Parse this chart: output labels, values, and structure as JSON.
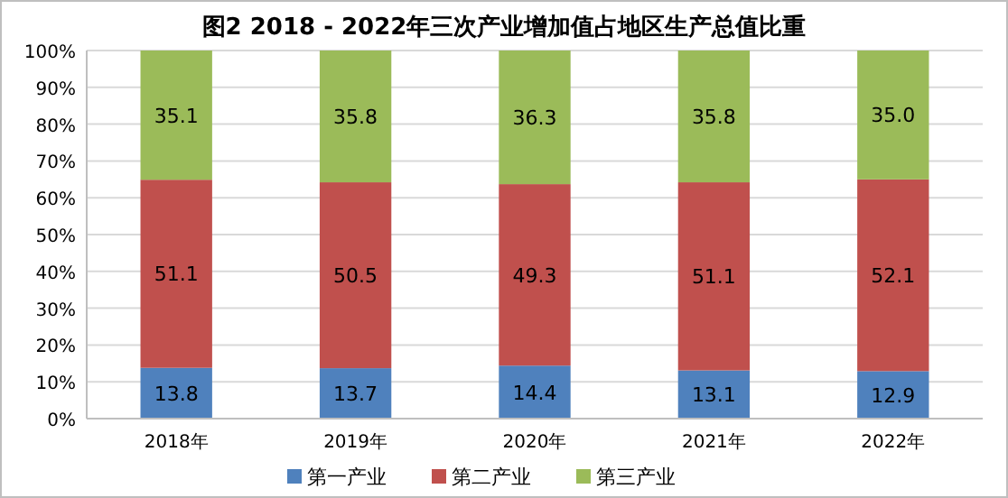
{
  "chart_data": {
    "type": "bar",
    "title": "图2 2018 - 2022年三次产业增加值占地区生产总值比重",
    "categories": [
      "2018年",
      "2019年",
      "2020年",
      "2021年",
      "2022年"
    ],
    "stacked": true,
    "series": [
      {
        "name": "第一产业",
        "color": "#4f81bd",
        "values": [
          13.8,
          13.7,
          14.4,
          13.1,
          12.9
        ]
      },
      {
        "name": "第二产业",
        "color": "#c0504d",
        "values": [
          51.1,
          50.5,
          49.3,
          51.1,
          52.1
        ]
      },
      {
        "name": "第三产业",
        "color": "#9bbb59",
        "values": [
          35.1,
          35.8,
          36.3,
          35.8,
          35.0
        ]
      }
    ],
    "value_labels": [
      [
        "13.8",
        "13.7",
        "14.4",
        "13.1",
        "12.9"
      ],
      [
        "51.1",
        "50.5",
        "49.3",
        "51.1",
        "52.1"
      ],
      [
        "35.1",
        "35.8",
        "36.3",
        "35.8",
        "35.0"
      ]
    ],
    "ylim": [
      0,
      100
    ],
    "yticks": [
      {
        "value": 0,
        "label": "0%"
      },
      {
        "value": 10,
        "label": "10%"
      },
      {
        "value": 20,
        "label": "20%"
      },
      {
        "value": 30,
        "label": "30%"
      },
      {
        "value": 40,
        "label": "40%"
      },
      {
        "value": 50,
        "label": "50%"
      },
      {
        "value": 60,
        "label": "60%"
      },
      {
        "value": 70,
        "label": "70%"
      },
      {
        "value": 80,
        "label": "80%"
      },
      {
        "value": 90,
        "label": "90%"
      },
      {
        "value": 100,
        "label": "100%"
      }
    ],
    "grid": "y",
    "legend": "bottom"
  }
}
